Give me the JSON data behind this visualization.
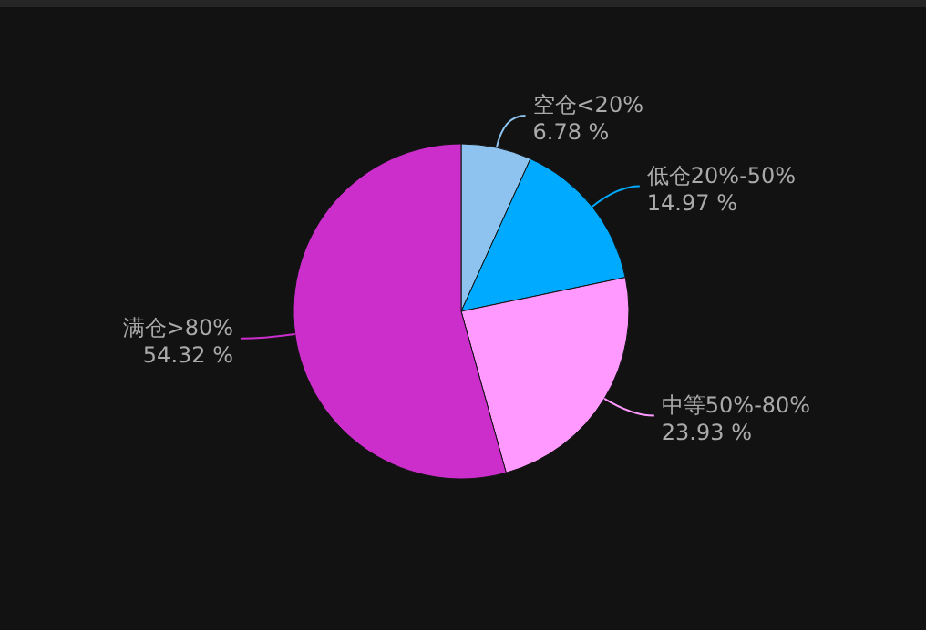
{
  "chart_data": {
    "type": "pie",
    "categories": [
      "空仓<20%",
      "低仓20%-50%",
      "中等50%-80%",
      "满仓>80%"
    ],
    "values": [
      6.78,
      14.97,
      23.93,
      54.32
    ],
    "colors": [
      "#8ec3f0",
      "#00aaff",
      "#ff99ff",
      "#cc2ecc"
    ],
    "value_labels": [
      "6.78 %",
      "14.97 %",
      "23.93 %",
      "54.32 %"
    ]
  }
}
